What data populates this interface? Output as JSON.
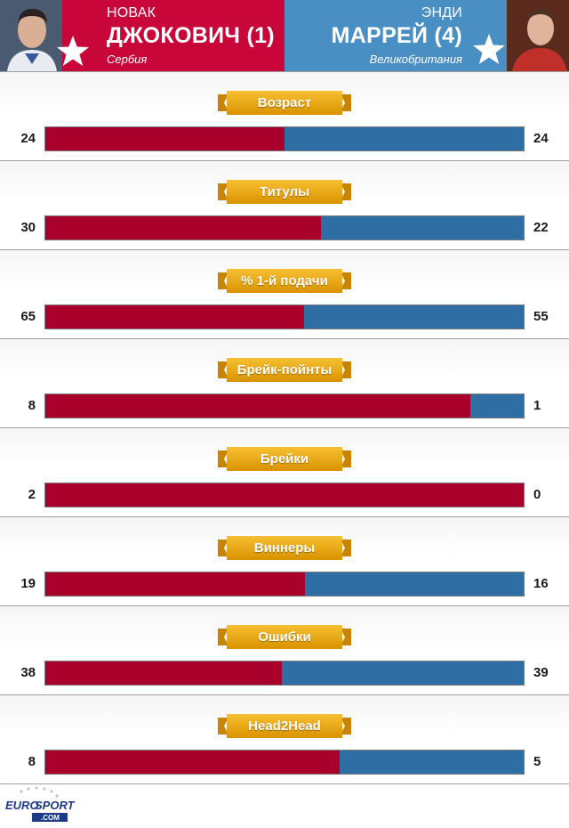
{
  "player1": {
    "first_name": "НОВАК",
    "last_name": "ДЖОКОВИЧ (1)",
    "country": "Сербия",
    "color": "#a8002a"
  },
  "player2": {
    "first_name": "ЭНДИ",
    "last_name": "МАРРЕЙ (4)",
    "country": "Великобритания",
    "color": "#2f6ea5"
  },
  "stats": [
    {
      "label": "Возраст",
      "left": "24",
      "right": "24"
    },
    {
      "label": "Титулы",
      "left": "30",
      "right": "22"
    },
    {
      "label": "% 1-й подачи",
      "left": "65",
      "right": "55"
    },
    {
      "label": "Брейк-пойнты",
      "left": "8",
      "right": "1"
    },
    {
      "label": "Брейки",
      "left": "2",
      "right": "0"
    },
    {
      "label": "Виннеры",
      "left": "19",
      "right": "16"
    },
    {
      "label": "Ошибки",
      "left": "38",
      "right": "39"
    },
    {
      "label": "Head2Head",
      "left": "8",
      "right": "5"
    }
  ],
  "footer": {
    "logo_line1": "EURO",
    "logo_line2": "SPORT",
    "logo_line3": ".COM"
  }
}
